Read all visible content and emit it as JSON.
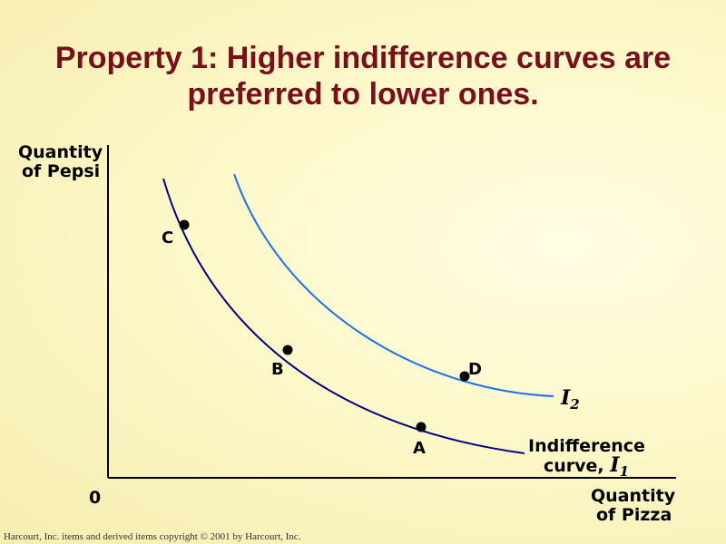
{
  "title": {
    "line1": "Property 1: Higher indifference curves are",
    "line2": "preferred to lower ones."
  },
  "axes": {
    "y_label_line1": "Quantity",
    "y_label_line2": "of Pepsi",
    "x_label_line1": "Quantity",
    "x_label_line2": "of Pizza",
    "origin": "0"
  },
  "curves": {
    "i1": {
      "label_line1": "Indifference",
      "label_line2_prefix": "curve, ",
      "symbol": "I",
      "subscript": "1",
      "color": "#000080"
    },
    "i2": {
      "symbol": "I",
      "subscript": "2",
      "color": "#1a73e8"
    }
  },
  "points": {
    "a": "A",
    "b": "B",
    "c": "C",
    "d": "D"
  },
  "footer": "Harcourt, Inc. items and derived items copyright © 2001  by Harcourt, Inc."
}
